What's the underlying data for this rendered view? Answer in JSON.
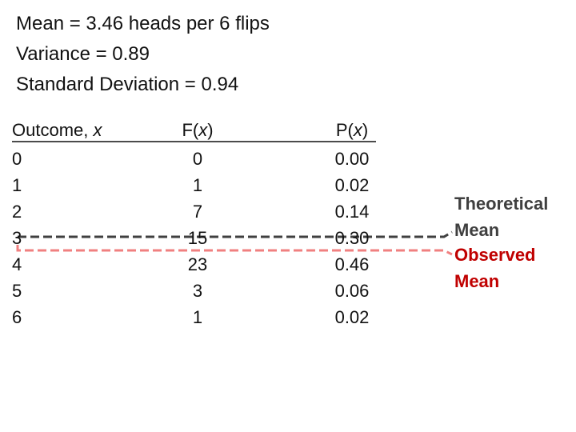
{
  "header": {
    "lines": [
      "Mean = 3.46 heads per 6 flips",
      "Variance = 0.89",
      "Standard Deviation = 0.94"
    ]
  },
  "table": {
    "headers": [
      [
        "Outcome, ",
        "x"
      ],
      [
        "F(",
        "x",
        ")"
      ],
      [
        "P(",
        "x",
        ")"
      ]
    ],
    "rows": [
      [
        "0",
        "0",
        "0.00"
      ],
      [
        "1",
        "1",
        "0.02"
      ],
      [
        "2",
        "7",
        "0.14"
      ],
      [
        "3",
        "15",
        "0.30"
      ],
      [
        "4",
        "23",
        "0.46"
      ],
      [
        "5",
        "3",
        "0.06"
      ],
      [
        "6",
        "1",
        "0.02"
      ]
    ]
  },
  "annotations": [
    {
      "lines": [
        "Theoretical",
        "Mean"
      ]
    },
    {
      "lines": [
        "Observed",
        "Mean"
      ]
    }
  ]
}
